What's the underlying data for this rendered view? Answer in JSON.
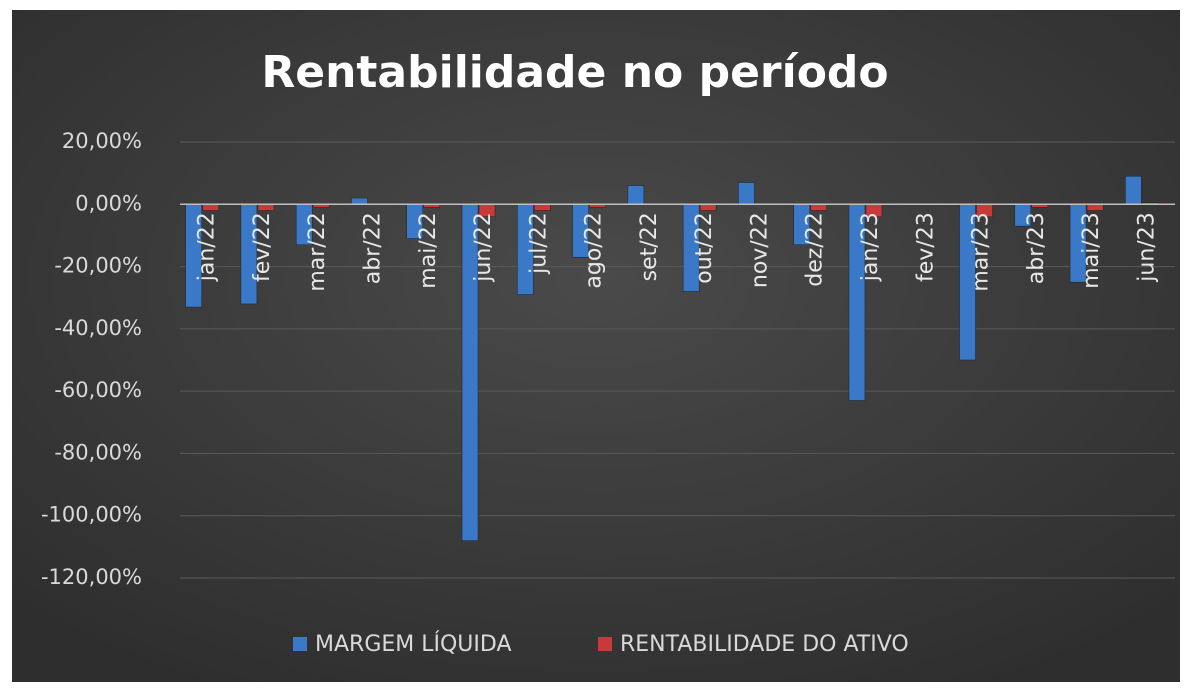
{
  "chart_data": {
    "type": "bar",
    "title": "Rentabilidade no período",
    "categories": [
      "jan/22",
      "fev/22",
      "mar/22",
      "abr/22",
      "mai/22",
      "jun/22",
      "jul/22",
      "ago/22",
      "set/22",
      "out/22",
      "nov/22",
      "dez/22",
      "jan/23",
      "fev/23",
      "mar/23",
      "abr/23",
      "mai/23",
      "jun/23"
    ],
    "series": [
      {
        "name": "MARGEM LÍQUIDA",
        "color": "#3a78c8",
        "values": [
          -33,
          -32,
          -13,
          2,
          -11,
          -108,
          -29,
          -17,
          6,
          -28,
          7,
          -13,
          -63,
          0,
          -50,
          -7,
          -25,
          9
        ]
      },
      {
        "name": "RENTABILIDADE DO ATIVO",
        "color": "#c83a3a",
        "values": [
          -2,
          -2,
          -1,
          0,
          -1,
          -4,
          -2,
          -1,
          0,
          -2,
          0,
          -2,
          -4,
          0,
          -4,
          -1,
          -2,
          0.5
        ]
      }
    ],
    "ylim": [
      -120,
      20
    ],
    "yticks": [
      {
        "value": 20,
        "label": "20,00%"
      },
      {
        "value": 0,
        "label": "0,00%"
      },
      {
        "value": -20,
        "label": "-20,00%"
      },
      {
        "value": -40,
        "label": "-40,00%"
      },
      {
        "value": -60,
        "label": "-60,00%"
      },
      {
        "value": -80,
        "label": "-80,00%"
      },
      {
        "value": -100,
        "label": "-100,00%"
      },
      {
        "value": -120,
        "label": "-120,00%"
      }
    ],
    "grid": true,
    "legend": "bottom"
  }
}
